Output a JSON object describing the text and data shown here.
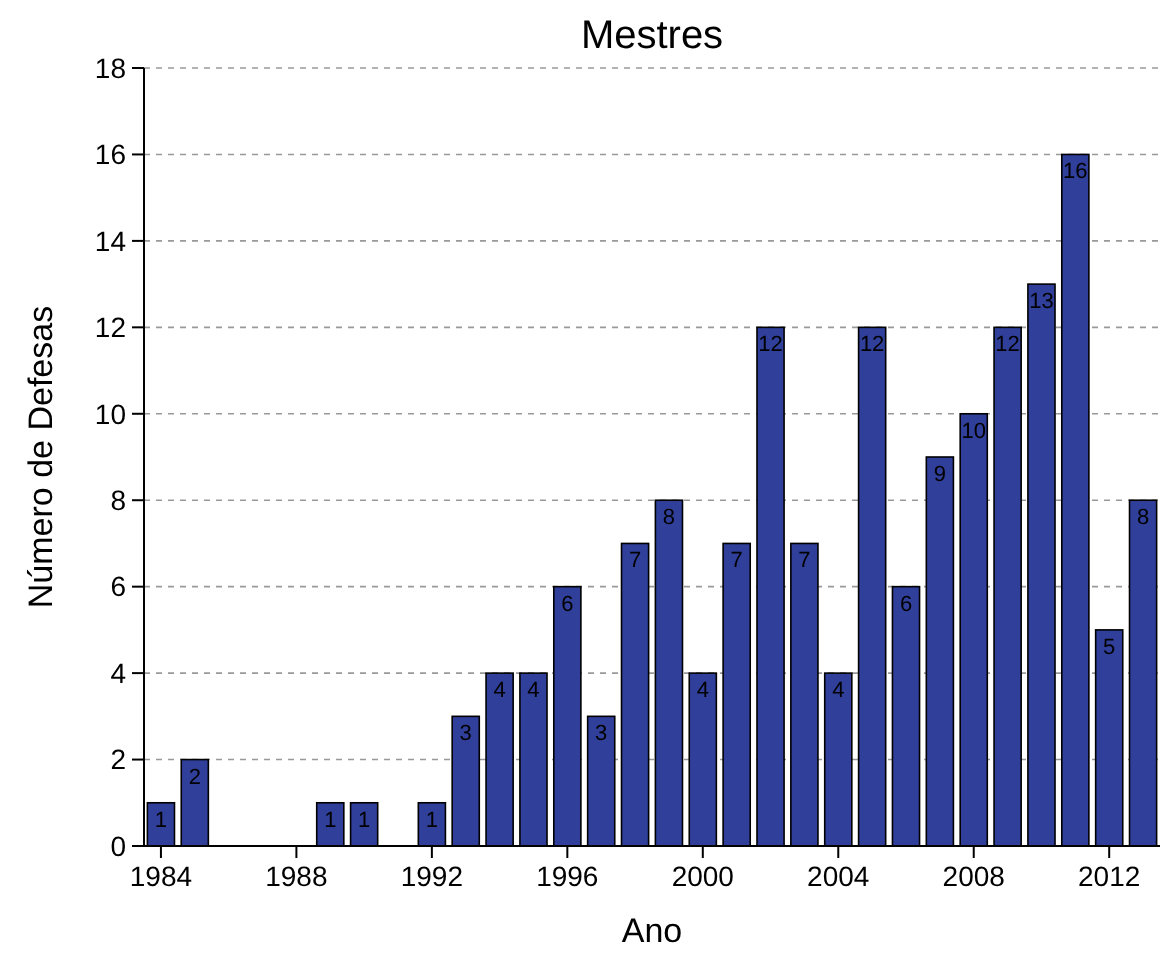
{
  "chart_data": {
    "type": "bar",
    "title": "Mestres",
    "xlabel": "Ano",
    "ylabel": "Número de Defesas",
    "x": [
      1984,
      1985,
      1986,
      1987,
      1988,
      1989,
      1990,
      1991,
      1992,
      1993,
      1994,
      1995,
      1996,
      1997,
      1998,
      1999,
      2000,
      2001,
      2002,
      2003,
      2004,
      2005,
      2006,
      2007,
      2008,
      2009,
      2010,
      2011,
      2012,
      2013
    ],
    "values": [
      1,
      2,
      0,
      0,
      0,
      1,
      1,
      0,
      1,
      3,
      4,
      4,
      6,
      3,
      7,
      8,
      4,
      7,
      12,
      7,
      4,
      12,
      6,
      9,
      10,
      12,
      13,
      16,
      5,
      8
    ],
    "value_labels": [
      "1",
      "2",
      null,
      null,
      null,
      "1",
      "1",
      null,
      "1",
      "3",
      "4",
      "4",
      "6",
      "3",
      "7",
      "8",
      "4",
      "7",
      "12",
      "7",
      "4",
      "12",
      "6",
      "9",
      "10",
      "12",
      "13",
      "16",
      "5",
      "8"
    ],
    "color": "#2f3f9a",
    "xlim": [
      1983.5,
      2013.5
    ],
    "xticks": [
      1984,
      1988,
      1992,
      1996,
      2000,
      2004,
      2008,
      2012
    ],
    "ylim": [
      0,
      18
    ],
    "yticks": [
      0,
      2,
      4,
      6,
      8,
      10,
      12,
      14,
      16,
      18
    ],
    "grid": "y"
  }
}
